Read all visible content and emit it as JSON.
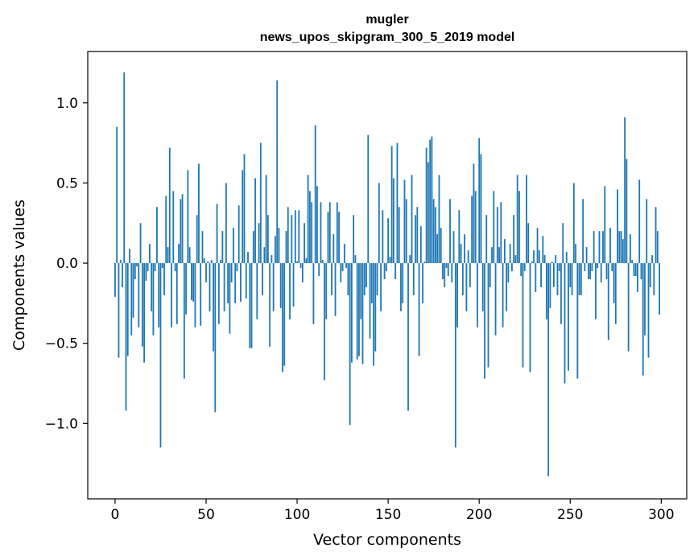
{
  "chart_data": {
    "type": "bar",
    "title": "mugler",
    "subtitle": "news_upos_skipgram_300_5_2019 model",
    "xlabel": "Vector components",
    "ylabel": "Components values",
    "xlim": [
      -15,
      314
    ],
    "ylim": [
      -1.47,
      1.32
    ],
    "xticks": [
      0,
      50,
      100,
      150,
      200,
      250,
      300
    ],
    "yticks": [
      -1.0,
      -0.5,
      0.0,
      0.5,
      1.0
    ],
    "ytick_labels": [
      "−1.0",
      "−0.5",
      "0.0",
      "0.5",
      "1.0"
    ],
    "bar_color": "#1f77b4",
    "grid": false,
    "values": [
      -0.21,
      0.85,
      -0.59,
      0.02,
      -0.15,
      1.19,
      -0.92,
      -0.58,
      0.09,
      -0.45,
      -0.34,
      -0.1,
      -0.02,
      -0.4,
      0.25,
      -0.52,
      -0.62,
      -0.11,
      -0.05,
      0.12,
      -0.3,
      -0.45,
      -0.05,
      0.35,
      -0.4,
      -1.15,
      -0.03,
      -0.2,
      0.42,
      0.1,
      0.72,
      -0.4,
      0.45,
      -0.05,
      -0.38,
      0.12,
      0.4,
      0.43,
      -0.72,
      -0.32,
      0.58,
      0.1,
      -0.23,
      -0.24,
      -0.4,
      0.3,
      0.62,
      -0.39,
      0.2,
      0.03,
      -0.12,
      0.01,
      -0.3,
      0.02,
      -0.55,
      -0.93,
      0.37,
      -0.38,
      0.02,
      0.2,
      -0.3,
      0.5,
      -0.25,
      -0.44,
      -0.12,
      0.22,
      -0.25,
      -0.05,
      0.36,
      -0.24,
      0.58,
      0.68,
      -0.22,
      0.07,
      -0.53,
      -0.53,
      0.2,
      0.53,
      -0.35,
      0.25,
      0.75,
      -0.2,
      0.1,
      0.55,
      0.3,
      -0.52,
      0.05,
      -0.3,
      0.17,
      1.14,
      0.22,
      -0.28,
      -0.68,
      -0.64,
      0.2,
      0.35,
      -0.35,
      0.3,
      -0.27,
      0.33,
      0.01,
      0.33,
      -0.03,
      -0.12,
      0.25,
      0.03,
      0.55,
      0.45,
      0.38,
      -0.38,
      0.86,
      0.48,
      -0.08,
      0.38,
      0.02,
      -0.73,
      -0.35,
      0.32,
      0.38,
      -0.2,
      0.18,
      -0.33,
      0.38,
      0.32,
      -0.12,
      -0.05,
      0.12,
      -0.03,
      -0.2,
      -1.01,
      -0.62,
      0.3,
      0.05,
      -0.6,
      -0.58,
      -0.35,
      -0.63,
      -0.2,
      -0.15,
      0.8,
      -0.47,
      -0.25,
      -0.64,
      -0.55,
      -0.2,
      0.5,
      -0.3,
      0.33,
      -0.1,
      -0.05,
      0.28,
      0.04,
      0.73,
      0.53,
      -0.1,
      0.75,
      0.35,
      -0.3,
      -0.25,
      0.52,
      0.4,
      -0.92,
      0.05,
      0.55,
      -0.2,
      0.3,
      0.35,
      -0.58,
      0.23,
      -0.25,
      0.01,
      0.72,
      0.63,
      0.77,
      0.79,
      0.4,
      0.35,
      0.18,
      0.55,
      0.22,
      -0.1,
      -0.15,
      -0.03,
      -0.08,
      0.4,
      -0.12,
      0.2,
      -1.15,
      -0.4,
      0.33,
      0.12,
      -0.2,
      0.18,
      -0.3,
      0.08,
      -0.15,
      0.42,
      0.62,
      0.45,
      -0.4,
      0.78,
      0.68,
      -0.3,
      -0.72,
      0.3,
      -0.65,
      -0.15,
      0.1,
      0.45,
      -0.45,
      0.35,
      0.1,
      0.38,
      -0.4,
      0.15,
      -0.3,
      -0.12,
      0.12,
      -0.05,
      0.3,
      0.05,
      0.55,
      0.45,
      -0.08,
      -0.65,
      -0.05,
      0.55,
      0.25,
      -0.68,
      0.01,
      0.08,
      -0.18,
      0.22,
      0.08,
      -0.15,
      0.17,
      0.05,
      -0.35,
      -1.33,
      -0.28,
      0.01,
      -0.15,
      0.05,
      -0.2,
      -0.05,
      -0.38,
      0.25,
      -0.75,
      0.07,
      -0.67,
      -0.15,
      -0.2,
      0.5,
      0.12,
      -0.72,
      -0.2,
      -0.2,
      0.4,
      -0.05,
      0.1,
      -0.1,
      -0.1,
      -0.05,
      0.2,
      -0.35,
      -0.03,
      0.2,
      -0.12,
      0.2,
      0.48,
      -0.1,
      -0.48,
      0.22,
      -0.05,
      -0.25,
      -0.38,
      0.46,
      0.2,
      0.2,
      0.15,
      0.91,
      0.65,
      -0.55,
      0.18,
      0.02,
      -0.08,
      -0.08,
      -0.18,
      0.52,
      -0.1,
      -0.7,
      -0.45,
      0.4,
      -0.59,
      -0.15,
      0.05,
      -0.2,
      0.35,
      0.2,
      -0.32
    ]
  }
}
